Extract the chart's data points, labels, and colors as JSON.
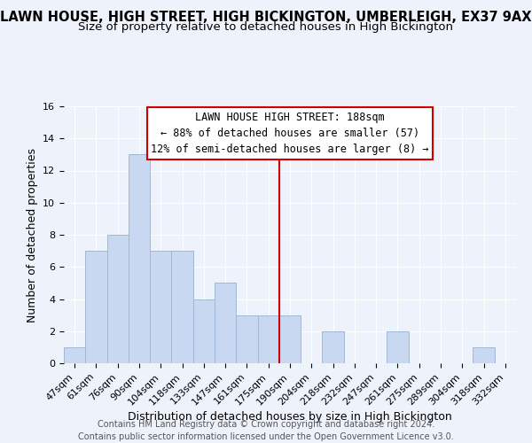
{
  "title": "LAWN HOUSE, HIGH STREET, HIGH BICKINGTON, UMBERLEIGH, EX37 9AX",
  "subtitle": "Size of property relative to detached houses in High Bickington",
  "xlabel": "Distribution of detached houses by size in High Bickington",
  "ylabel": "Number of detached properties",
  "categories": [
    "47sqm",
    "61sqm",
    "76sqm",
    "90sqm",
    "104sqm",
    "118sqm",
    "133sqm",
    "147sqm",
    "161sqm",
    "175sqm",
    "190sqm",
    "204sqm",
    "218sqm",
    "232sqm",
    "247sqm",
    "261sqm",
    "275sqm",
    "289sqm",
    "304sqm",
    "318sqm",
    "332sqm"
  ],
  "values": [
    1,
    7,
    8,
    13,
    7,
    7,
    4,
    5,
    3,
    3,
    3,
    0,
    2,
    0,
    0,
    2,
    0,
    0,
    0,
    1,
    0
  ],
  "bar_color": "#c8d8f0",
  "bar_edge_color": "#a0b8d8",
  "vline_index": 10,
  "vline_color": "#cc0000",
  "annotation_text": "LAWN HOUSE HIGH STREET: 188sqm\n← 88% of detached houses are smaller (57)\n12% of semi-detached houses are larger (8) →",
  "annotation_box_facecolor": "#ffffff",
  "annotation_box_edgecolor": "#cc0000",
  "footer": "Contains HM Land Registry data © Crown copyright and database right 2024.\nContains public sector information licensed under the Open Government Licence v3.0.",
  "ylim": [
    0,
    16
  ],
  "yticks": [
    0,
    2,
    4,
    6,
    8,
    10,
    12,
    14,
    16
  ],
  "bg_color": "#eef2fa",
  "title_fontsize": 10.5,
  "subtitle_fontsize": 9.5,
  "axis_label_fontsize": 9,
  "tick_fontsize": 8,
  "footer_fontsize": 7,
  "annotation_fontsize": 8.5
}
